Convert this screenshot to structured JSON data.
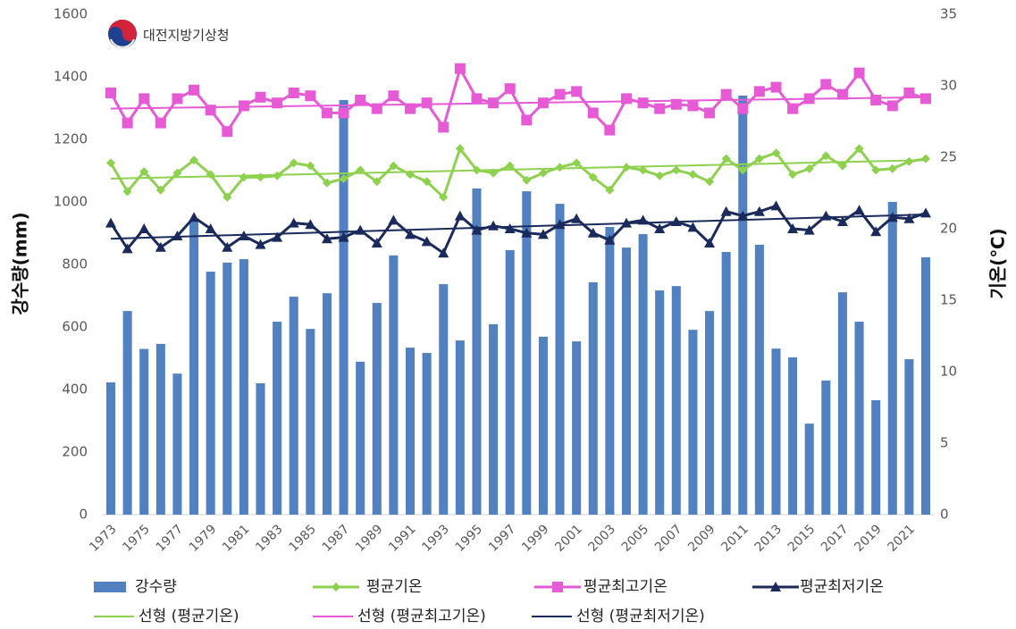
{
  "chart_data": {
    "type": "combo",
    "logo": "대전지방기상청",
    "y_label": "강수량(mm)",
    "y2_label": "기온(℃)",
    "categories": [
      "1973",
      null,
      "1975",
      null,
      "1977",
      null,
      "1979",
      null,
      "1981",
      null,
      "1983",
      null,
      "1985",
      null,
      "1987",
      null,
      "1989",
      null,
      "1991",
      null,
      "1993",
      null,
      "1995",
      null,
      "1997",
      null,
      "1999",
      null,
      "2001",
      null,
      "2003",
      null,
      "2005",
      null,
      "2007",
      null,
      "2009",
      null,
      "2011",
      null,
      "2013",
      null,
      "2015",
      null,
      "2017",
      null,
      "2019",
      null,
      "2021",
      null
    ],
    "ylim": [
      0,
      1600
    ],
    "yticks": [
      0,
      200,
      400,
      600,
      800,
      1000,
      1200,
      1400,
      1600
    ],
    "y2lim": [
      0,
      35
    ],
    "y2ticks": [
      0,
      5,
      10,
      15,
      20,
      25,
      30,
      35
    ],
    "series": [
      {
        "name": "강수량",
        "type": "bar",
        "axis": "y",
        "color": "#5181c0",
        "values": [
          423,
          651,
          530,
          546,
          451,
          940,
          777,
          806,
          817,
          420,
          617,
          697,
          594,
          708,
          1326,
          489,
          677,
          829,
          534,
          517,
          737,
          557,
          1043,
          609,
          846,
          1034,
          569,
          994,
          554,
          743,
          920,
          854,
          897,
          717,
          731,
          591,
          651,
          840,
          1340,
          863,
          531,
          503,
          291,
          429,
          711,
          617,
          366,
          1000,
          497,
          823
        ]
      },
      {
        "name": "평균기온",
        "type": "line",
        "axis": "y2",
        "color": "#8ed14e",
        "marker": "diamond",
        "values": [
          24.6,
          22.6,
          24.0,
          22.7,
          23.9,
          24.8,
          23.8,
          22.2,
          23.6,
          23.6,
          23.7,
          24.6,
          24.4,
          23.2,
          23.5,
          24.1,
          23.3,
          24.4,
          23.8,
          23.3,
          22.2,
          25.6,
          24.1,
          23.9,
          24.4,
          23.4,
          23.9,
          24.3,
          24.6,
          23.6,
          22.7,
          24.3,
          24.1,
          23.7,
          24.1,
          23.8,
          23.3,
          24.9,
          24.1,
          24.9,
          25.3,
          23.8,
          24.2,
          25.1,
          24.4,
          25.6,
          24.1,
          24.2,
          24.7,
          24.9
        ]
      },
      {
        "name": "평균최고기온",
        "type": "line",
        "axis": "y2",
        "color": "#e65ad6",
        "marker": "square",
        "values": [
          29.5,
          27.4,
          29.1,
          27.4,
          29.1,
          29.7,
          28.3,
          26.8,
          28.6,
          29.2,
          28.8,
          29.5,
          29.3,
          28.1,
          28.1,
          29.0,
          28.4,
          29.3,
          28.4,
          28.8,
          27.1,
          31.2,
          29.1,
          28.8,
          29.8,
          27.6,
          28.8,
          29.4,
          29.6,
          28.1,
          26.9,
          29.1,
          28.8,
          28.4,
          28.7,
          28.6,
          28.1,
          29.4,
          28.4,
          29.6,
          29.9,
          28.4,
          29.1,
          30.1,
          29.4,
          30.9,
          29.0,
          28.6,
          29.5,
          29.1
        ]
      },
      {
        "name": "평균최저기온",
        "type": "line",
        "axis": "y2",
        "color": "#1b2a5c",
        "marker": "triangle",
        "values": [
          20.4,
          18.6,
          20.0,
          18.7,
          19.5,
          20.8,
          20.0,
          18.7,
          19.5,
          18.9,
          19.4,
          20.4,
          20.3,
          19.3,
          19.4,
          19.9,
          19.0,
          20.6,
          19.6,
          19.1,
          18.3,
          20.9,
          19.9,
          20.2,
          20.0,
          19.7,
          19.6,
          20.3,
          20.7,
          19.7,
          19.2,
          20.4,
          20.6,
          20.0,
          20.5,
          20.1,
          19.0,
          21.2,
          20.9,
          21.2,
          21.6,
          20.0,
          19.9,
          20.9,
          20.5,
          21.3,
          19.8,
          20.8,
          20.7,
          21.1
        ]
      }
    ],
    "trendlines": [
      {
        "name": "선형 (평균기온)",
        "axis": "y2",
        "color": "#8ed14e",
        "values": [
          23.5,
          24.8
        ]
      },
      {
        "name": "선형 (평균최고기온)",
        "axis": "y2",
        "color": "#e65ad6",
        "values": [
          28.4,
          29.2
        ]
      },
      {
        "name": "선형 (평균최저기온)",
        "axis": "y2",
        "color": "#1b2a5c",
        "values": [
          19.3,
          21.0
        ]
      }
    ]
  }
}
